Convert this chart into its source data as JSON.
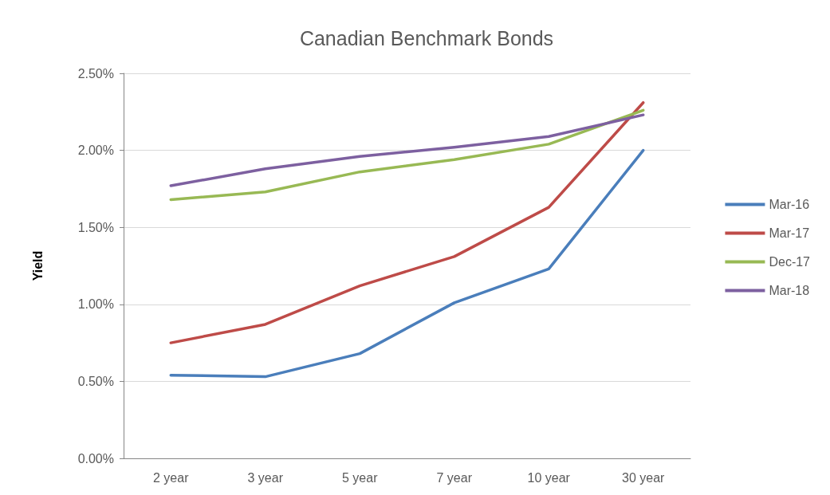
{
  "chart_data": {
    "type": "line",
    "title": "Canadian Benchmark Bonds",
    "ylabel": "Yield",
    "categories": [
      "2 year",
      "3 year",
      "5 year",
      "7 year",
      "10 year",
      "30 year"
    ],
    "series": [
      {
        "name": "Mar-16",
        "color": "#4a7ebb",
        "values": [
          0.54,
          0.53,
          0.68,
          1.01,
          1.23,
          2.0
        ]
      },
      {
        "name": "Mar-17",
        "color": "#be4b48",
        "values": [
          0.75,
          0.87,
          1.12,
          1.31,
          1.63,
          2.31
        ]
      },
      {
        "name": "Dec-17",
        "color": "#98b954",
        "values": [
          1.68,
          1.73,
          1.86,
          1.94,
          2.04,
          2.26
        ]
      },
      {
        "name": "Mar-18",
        "color": "#7d60a0",
        "values": [
          1.77,
          1.88,
          1.96,
          2.02,
          2.09,
          2.23
        ]
      }
    ],
    "ylim": [
      0,
      2.5
    ],
    "yticks": [
      {
        "value": 0,
        "label": "0.00%"
      },
      {
        "value": 0.5,
        "label": "0.50%"
      },
      {
        "value": 1,
        "label": "1.00%"
      },
      {
        "value": 1.5,
        "label": "1.50%"
      },
      {
        "value": 2,
        "label": "2.00%"
      },
      {
        "value": 2.5,
        "label": "2.50%"
      }
    ],
    "grid": "y",
    "legend": "right",
    "marker": "none",
    "line_style": "solid"
  }
}
